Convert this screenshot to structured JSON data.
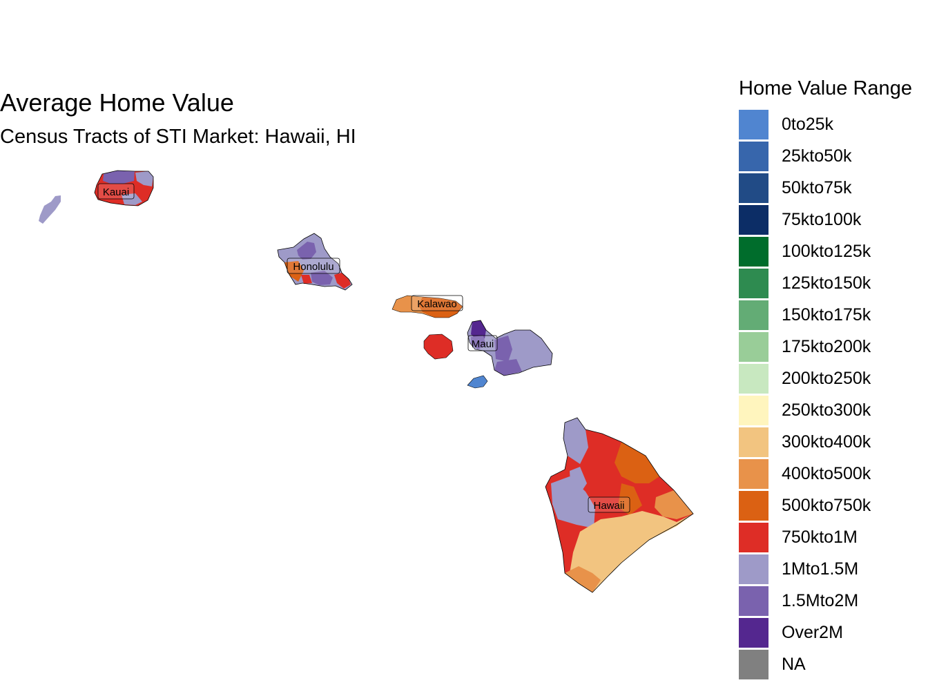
{
  "title": "Average Home Value",
  "subtitle": "Census Tracts of STI Market: Hawaii, HI",
  "legend": {
    "title": "Home Value Range",
    "items": [
      {
        "label": "0to25k",
        "color": "#5085D0"
      },
      {
        "label": "25kto50k",
        "color": "#3766AC"
      },
      {
        "label": "50kto75k",
        "color": "#214B86"
      },
      {
        "label": "75kto100k",
        "color": "#0C2D66"
      },
      {
        "label": "100kto125k",
        "color": "#006D2C"
      },
      {
        "label": "125kto150k",
        "color": "#2E8B50"
      },
      {
        "label": "150kto175k",
        "color": "#63AC75"
      },
      {
        "label": "175kto200k",
        "color": "#99CD98"
      },
      {
        "label": "200kto250k",
        "color": "#C8E8C0"
      },
      {
        "label": "250kto300k",
        "color": "#FFF5BE"
      },
      {
        "label": "300kto400k",
        "color": "#F2C480"
      },
      {
        "label": "400kto500k",
        "color": "#E8924A"
      },
      {
        "label": "500kto750k",
        "color": "#DB6113"
      },
      {
        "label": "750kto1M",
        "color": "#DE2D26"
      },
      {
        "label": "1Mto1.5M",
        "color": "#9E9AC8"
      },
      {
        "label": "1.5Mto2M",
        "color": "#7A62AE"
      },
      {
        "label": "Over2M",
        "color": "#54278F"
      },
      {
        "label": "NA",
        "color": "#808080"
      }
    ]
  },
  "counties": {
    "kauai": "Kauai",
    "honolulu": "Honolulu",
    "kalawao": "Kalawao",
    "maui": "Maui",
    "hawaii": "Hawaii"
  }
}
